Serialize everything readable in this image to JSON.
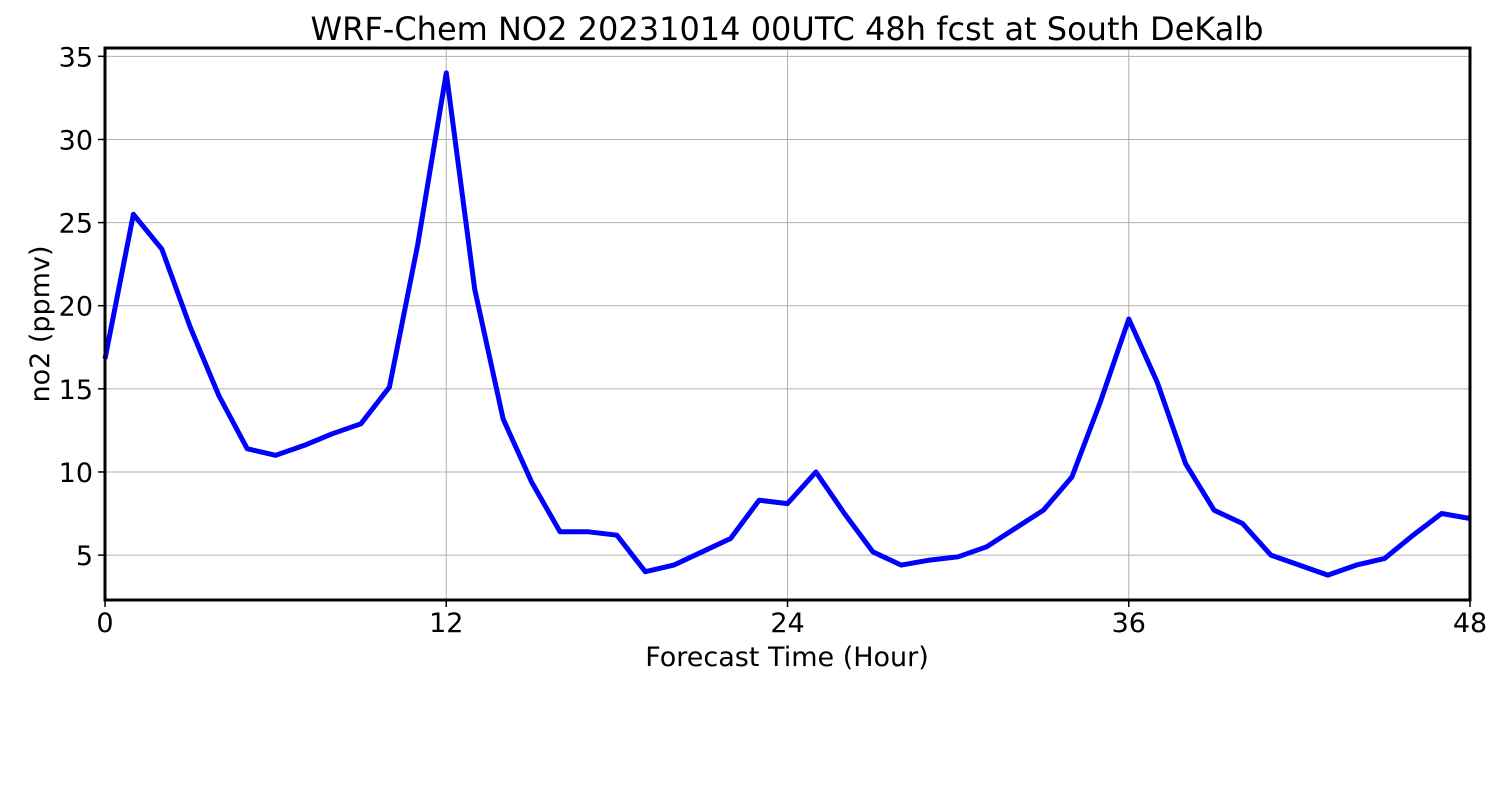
{
  "chart_data": {
    "type": "line",
    "title": "WRF-Chem NO2  20231014 00UTC 48h fcst at South DeKalb",
    "xlabel": "Forecast Time (Hour)",
    "ylabel": "no2  (ppmv)",
    "xlim": [
      0,
      48
    ],
    "ylim": [
      2.3,
      35.5
    ],
    "x_ticks": [
      0,
      12,
      24,
      36,
      48
    ],
    "x_tick_labels": [
      "0",
      "12",
      "24",
      "36",
      "48"
    ],
    "y_ticks": [
      5,
      10,
      15,
      20,
      25,
      30,
      35
    ],
    "y_tick_labels": [
      "5",
      "10",
      "15",
      "20",
      "25",
      "30",
      "35"
    ],
    "grid": true,
    "line_color": "#0000ff",
    "x": [
      0,
      1,
      2,
      3,
      4,
      5,
      6,
      7,
      8,
      9,
      10,
      11,
      12,
      13,
      14,
      15,
      16,
      17,
      18,
      19,
      20,
      21,
      22,
      23,
      24,
      25,
      26,
      27,
      28,
      29,
      30,
      31,
      32,
      33,
      34,
      35,
      36,
      37,
      38,
      39,
      40,
      41,
      42,
      43,
      44,
      45,
      46,
      47,
      48
    ],
    "series": [
      {
        "values": [
          16.8,
          25.5,
          23.4,
          18.7,
          14.6,
          11.4,
          11.0,
          11.6,
          12.3,
          12.9,
          15.1,
          23.7,
          34.0,
          21.0,
          13.2,
          9.4,
          6.4,
          6.4,
          6.2,
          4.0,
          4.4,
          5.2,
          6.0,
          8.3,
          8.1,
          10.0,
          7.5,
          5.2,
          4.4,
          4.7,
          4.9,
          5.5,
          6.6,
          7.7,
          9.7,
          14.2,
          19.2,
          15.4,
          10.5,
          7.7,
          6.9,
          5.0,
          4.4,
          3.8,
          4.4,
          4.8,
          6.2,
          7.5,
          7.2
        ]
      }
    ]
  }
}
